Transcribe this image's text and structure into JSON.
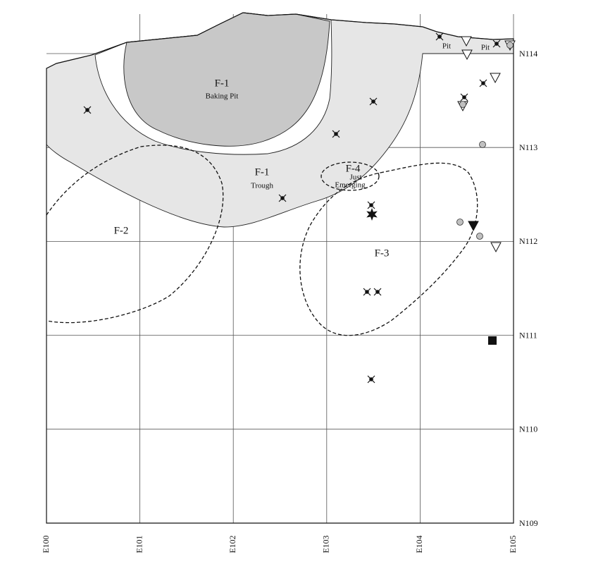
{
  "map": {
    "features": {
      "baking_pit": {
        "name": "F-1",
        "label": "Baking Pit"
      },
      "trough": {
        "name": "F-1",
        "label": "Trough"
      },
      "f4": {
        "name": "F-4",
        "label_line1": "Just",
        "label_line2": "Emerging"
      },
      "f2": {
        "name": "F-2"
      },
      "f3": {
        "name": "F-3"
      },
      "pits": [
        "Pit",
        "Pit"
      ]
    },
    "northings": [
      "N114",
      "N113",
      "N112",
      "N111",
      "N110",
      "N109"
    ],
    "eastings": [
      "E100",
      "E101",
      "E102",
      "E103",
      "E104",
      "E105"
    ]
  }
}
